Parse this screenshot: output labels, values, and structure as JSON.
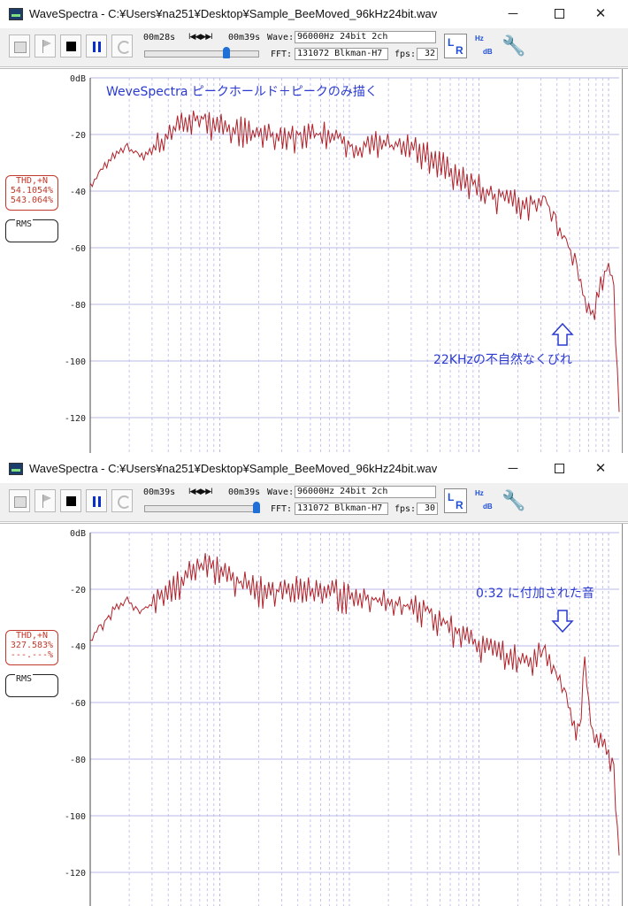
{
  "windows": [
    {
      "title": "WaveSpectra - C:¥Users¥na251¥Desktop¥Sample_BeeMoved_96kHz24bit.wav",
      "time_current": "00m28s",
      "time_total": "00m39s",
      "nav_symbols": "I◀◀▶▶I",
      "wave_label": "Wave:",
      "wave_value": "96000Hz 24bit 2ch",
      "fft_label": "FFT:",
      "fft_value": "131072 Blkman-H7",
      "fps_label": "fps:",
      "fps_value": "32",
      "slider_fraction": 0.72,
      "thd_label": "THD,+N",
      "thd_value1": "54.1054%",
      "thd_value2": "543.064%",
      "rms_label": "RMS",
      "annotation_title": "WeveSpectra ピークホールド＋ピークのみ描く",
      "annotation_note": "22KHzの不自然なくびれ",
      "arrow_direction": "up"
    },
    {
      "title": "WaveSpectra - C:¥Users¥na251¥Desktop¥Sample_BeeMoved_96kHz24bit.wav",
      "time_current": "00m39s",
      "time_total": "00m39s",
      "nav_symbols": "I◀◀▶▶I",
      "wave_label": "Wave:",
      "wave_value": "96000Hz 24bit 2ch",
      "fft_label": "FFT:",
      "fft_value": "131072 Blkman-H7",
      "fps_label": "fps:",
      "fps_value": "30",
      "slider_fraction": 1.0,
      "thd_label": "THD,+N",
      "thd_value1": "327.583%",
      "thd_value2": "---.---%",
      "rms_label": "RMS",
      "annotation_title": "",
      "annotation_note": "0:32 に付加された音",
      "arrow_direction": "down"
    }
  ],
  "window_controls": {
    "minimize": "─",
    "close": "✕"
  },
  "toolbar_icons": [
    "open-file-icon",
    "flag-icon",
    "stop-icon",
    "pause-icon",
    "refresh-icon",
    "lr-channel-icon",
    "hz-db-icon",
    "wrench-icon"
  ],
  "colors": {
    "trace": "#b0222a",
    "grid": "#b8b8e8",
    "annotation": "#2a3ad0",
    "thd": "#c0392b",
    "accent": "#1f6fd6"
  },
  "chart_data": [
    {
      "type": "line",
      "title": "WeveSpectra ピークホールド＋ピークのみ描く",
      "ylabel": "",
      "xlabel": "",
      "yticks": [
        "0dB",
        "-20",
        "-40",
        "-60",
        "-80",
        "-100",
        "-120"
      ],
      "ylim": [
        -130,
        0
      ],
      "x_scale": "log",
      "x_range_fraction": [
        0,
        1
      ],
      "series": [
        {
          "x": [
            0.0,
            0.02,
            0.05,
            0.07,
            0.09,
            0.12,
            0.15,
            0.18,
            0.21,
            0.24,
            0.27,
            0.3,
            0.33,
            0.36,
            0.39,
            0.42,
            0.45,
            0.48,
            0.51,
            0.54,
            0.57,
            0.6,
            0.63,
            0.66,
            0.69,
            0.72,
            0.75,
            0.78,
            0.81,
            0.84,
            0.86,
            0.88,
            0.9,
            0.92,
            0.935,
            0.95,
            0.965,
            0.98,
            0.99,
            1.0
          ],
          "values": [
            -38,
            -33,
            -26,
            -24,
            -28,
            -25,
            -20,
            -15,
            -14,
            -16,
            -18,
            -18,
            -20,
            -22,
            -20,
            -20,
            -19,
            -22,
            -25,
            -23,
            -24,
            -24,
            -26,
            -30,
            -33,
            -37,
            -40,
            -42,
            -44,
            -44,
            -43,
            -50,
            -58,
            -66,
            -78,
            -84,
            -73,
            -66,
            -75,
            -118
          ]
        }
      ]
    },
    {
      "type": "line",
      "title": "",
      "ylabel": "",
      "xlabel": "",
      "yticks": [
        "0dB",
        "-20",
        "-40",
        "-60",
        "-80",
        "-100",
        "-120"
      ],
      "ylim": [
        -130,
        0
      ],
      "x_scale": "log",
      "x_range_fraction": [
        0,
        1
      ],
      "series": [
        {
          "x": [
            0.0,
            0.02,
            0.05,
            0.07,
            0.09,
            0.12,
            0.15,
            0.18,
            0.21,
            0.24,
            0.27,
            0.3,
            0.33,
            0.36,
            0.39,
            0.42,
            0.45,
            0.48,
            0.51,
            0.54,
            0.57,
            0.6,
            0.63,
            0.66,
            0.69,
            0.72,
            0.75,
            0.78,
            0.81,
            0.84,
            0.86,
            0.88,
            0.9,
            0.915,
            0.925,
            0.935,
            0.95,
            0.965,
            0.98,
            0.99,
            1.0
          ],
          "values": [
            -38,
            -33,
            -26,
            -24,
            -28,
            -25,
            -20,
            -15,
            -11,
            -13,
            -17,
            -18,
            -20,
            -21,
            -19,
            -20,
            -19,
            -22,
            -24,
            -23,
            -24,
            -26,
            -27,
            -30,
            -34,
            -37,
            -40,
            -42,
            -44,
            -44,
            -42,
            -50,
            -58,
            -68,
            -70,
            -46,
            -72,
            -72,
            -78,
            -84,
            -114
          ]
        }
      ]
    }
  ]
}
